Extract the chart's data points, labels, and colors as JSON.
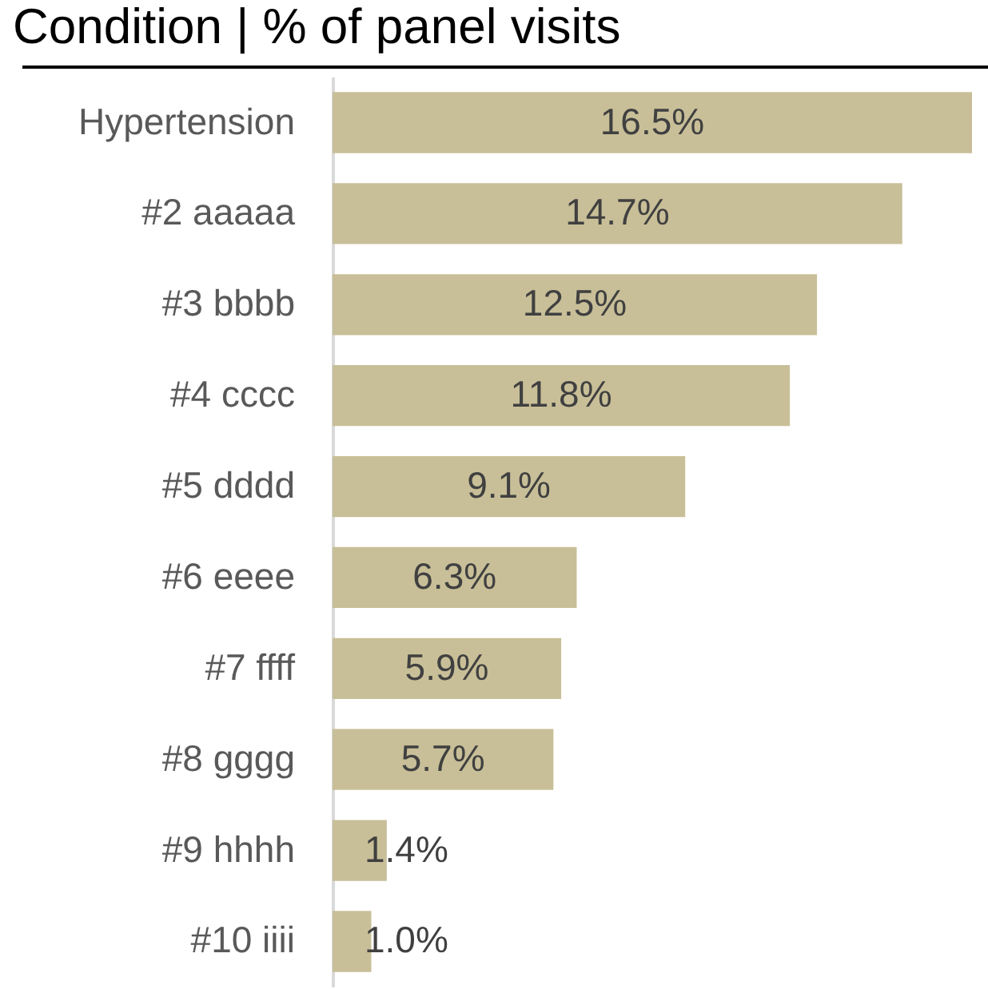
{
  "chart_data": {
    "type": "bar",
    "orientation": "horizontal",
    "title": "Condition  | % of panel visits",
    "categories": [
      "Hypertension",
      "#2 aaaaa",
      "#3 bbbb",
      "#4 cccc",
      "#5 dddd",
      "#6 eeee",
      "#7  ffff",
      "#8 gggg",
      "#9 hhhh",
      "#10 iiii"
    ],
    "values": [
      16.5,
      14.7,
      12.5,
      11.8,
      9.1,
      6.3,
      5.9,
      5.7,
      1.4,
      1.0
    ],
    "value_labels": [
      "16.5%",
      "14.7%",
      "12.5%",
      "11.8%",
      "9.1%",
      "6.3%",
      "5.9%",
      "5.7%",
      "1.4%",
      "1.0%"
    ],
    "color": "#c8bf98"
  }
}
